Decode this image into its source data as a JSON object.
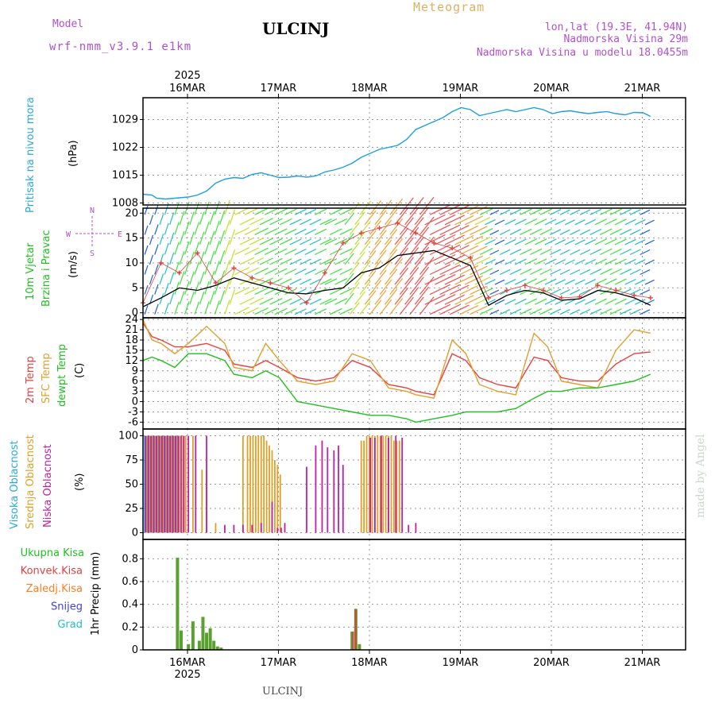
{
  "header": {
    "model_label": "Model",
    "model_name": "wrf-nmm_v3.9.1 e1km",
    "title": "ULCINJ",
    "meteogram_label": "Meteogram",
    "lonlat": "lon,lat (19.3E, 41.94N)",
    "elevation": "Nadmorska Visina 29m",
    "model_elevation": "Nadmorska Visina u modelu 18.0455m"
  },
  "footer": {
    "station": "ULCINJ",
    "credit": "made by Angel"
  },
  "colors": {
    "pressure": "#1e9fe0",
    "t2m": "#e84040",
    "sfc": "#e0a030",
    "dew": "#20c020",
    "high_cloud": "#28a8e0",
    "mid_cloud": "#e0a028",
    "low_cloud": "#c020a0",
    "precip": "#5aa030",
    "conv": "#e04040",
    "ice": "#ff7f20",
    "snow": "#4040e0",
    "grad": "#20c0c0",
    "wind_speed": "#000000",
    "gust": "#e04040"
  },
  "chart_data": [
    {
      "type": "line",
      "name": "pressure",
      "ylabel_1": "Pritisak na nivou mora",
      "ylabel_2": "(hPa)",
      "yticks": [
        1008,
        1015,
        1022,
        1029
      ],
      "ylim": [
        1007.5,
        1034.5
      ],
      "x_days": [
        "16MAR",
        "17MAR",
        "18MAR",
        "19MAR",
        "20MAR",
        "21MAR"
      ],
      "top_year": "2025",
      "bottom_year": "2025",
      "x": [
        0,
        0.1,
        0.15,
        0.25,
        0.35,
        0.5,
        0.6,
        0.7,
        0.8,
        0.9,
        1.0,
        1.1,
        1.2,
        1.3,
        1.4,
        1.5,
        1.6,
        1.7,
        1.8,
        1.9,
        2.0,
        2.1,
        2.2,
        2.3,
        2.4,
        2.5,
        2.6,
        2.7,
        2.8,
        2.9,
        3.0,
        3.1,
        3.2,
        3.3,
        3.4,
        3.5,
        3.6,
        3.7,
        3.8,
        3.9,
        4.0,
        4.1,
        4.2,
        4.3,
        4.4,
        4.5,
        4.6,
        4.7,
        4.8,
        4.9,
        5.0,
        5.1,
        5.2,
        5.3,
        5.4,
        5.5,
        5.58
      ],
      "y": [
        1010.2,
        1010.0,
        1009.2,
        1009.0,
        1009.2,
        1009.5,
        1010.0,
        1011.0,
        1013.0,
        1014.0,
        1014.4,
        1014.2,
        1015.2,
        1015.6,
        1015.0,
        1014.4,
        1014.5,
        1014.8,
        1014.5,
        1014.8,
        1015.8,
        1016.3,
        1017.0,
        1018.0,
        1019.5,
        1020.5,
        1021.5,
        1022.0,
        1022.5,
        1024.0,
        1026.5,
        1027.5,
        1028.5,
        1029.5,
        1031.0,
        1032.0,
        1031.5,
        1030.0,
        1030.5,
        1031.0,
        1031.5,
        1031.0,
        1031.5,
        1032.0,
        1031.5,
        1030.5,
        1031.0,
        1031.2,
        1030.8,
        1030.5,
        1030.8,
        1031.0,
        1030.5,
        1030.2,
        1030.8,
        1030.7,
        1029.8
      ]
    },
    {
      "type": "line",
      "name": "wind",
      "ylabel_1": "10m Vjetar",
      "ylabel_2": "Brzina i Pravac",
      "ylabel_3": "(m/s)",
      "compass": "N",
      "compass_w": "W",
      "compass_s": "S",
      "compass_e": "E",
      "yticks": [
        0,
        5,
        10,
        15,
        20
      ],
      "ylim": [
        -1,
        21
      ],
      "x": [
        0,
        0.2,
        0.4,
        0.6,
        0.8,
        1.0,
        1.2,
        1.4,
        1.6,
        1.8,
        2.0,
        2.2,
        2.4,
        2.6,
        2.8,
        3.0,
        3.2,
        3.4,
        3.6,
        3.8,
        4.0,
        4.2,
        4.4,
        4.6,
        4.8,
        5.0,
        5.2,
        5.4,
        5.58
      ],
      "speed": [
        1.2,
        3.0,
        5.0,
        4.5,
        5.5,
        7.0,
        6.0,
        5.0,
        4.0,
        3.8,
        4.5,
        5.0,
        8.0,
        9.0,
        11.5,
        12.0,
        12.5,
        11.0,
        9.5,
        1.5,
        3.5,
        4.5,
        4.0,
        2.5,
        2.8,
        4.5,
        4.0,
        3.0,
        1.5
      ],
      "gust": [
        2.0,
        10.0,
        8.0,
        12.0,
        6.0,
        9.0,
        7.0,
        6.0,
        5.0,
        2.0,
        8.0,
        14.0,
        16.0,
        17.0,
        18.0,
        16.0,
        14.0,
        13.0,
        11.0,
        3.0,
        4.5,
        5.5,
        4.5,
        3.0,
        3.2,
        5.5,
        4.5,
        3.5,
        3.0
      ]
    },
    {
      "type": "line",
      "name": "temperature",
      "ylabel_1": "2m Temp",
      "ylabel_2": "SFC Temp",
      "ylabel_3": "dewpt Temp",
      "ylabel_4": "(C)",
      "yticks": [
        -6,
        -3,
        0,
        3,
        6,
        9,
        12,
        15,
        18,
        21,
        24
      ],
      "ylim": [
        -8,
        24.5
      ],
      "x": [
        0,
        0.1,
        0.2,
        0.35,
        0.5,
        0.7,
        0.9,
        1.0,
        1.2,
        1.35,
        1.5,
        1.7,
        1.9,
        2.1,
        2.3,
        2.5,
        2.7,
        2.9,
        3.0,
        3.2,
        3.4,
        3.55,
        3.7,
        3.9,
        4.1,
        4.3,
        4.45,
        4.6,
        4.8,
        5.0,
        5.2,
        5.4,
        5.58
      ],
      "series": [
        {
          "key": "t2m",
          "y": [
            23,
            19,
            18,
            16,
            16,
            17,
            15,
            11,
            10,
            12,
            10,
            7,
            6,
            7,
            12,
            10,
            5,
            4,
            3,
            2,
            14,
            12,
            7,
            5,
            4,
            13,
            12,
            7,
            6,
            6,
            11,
            14,
            14.5
          ]
        },
        {
          "key": "sfc",
          "y": [
            24,
            18,
            17,
            14,
            17,
            22,
            17,
            10,
            9,
            17,
            12,
            6,
            5,
            6,
            14,
            12,
            4,
            3,
            2,
            1,
            18,
            14,
            5,
            3,
            2,
            20,
            16,
            6,
            5,
            4,
            15,
            21,
            20
          ]
        },
        {
          "key": "dew",
          "y": [
            12,
            13,
            12,
            10,
            14,
            14,
            12,
            8,
            7,
            9,
            7,
            0,
            -1,
            -2,
            -3,
            -4,
            -4,
            -5,
            -6,
            -5,
            -4,
            -3,
            -3,
            -3,
            -2,
            1,
            3,
            3,
            4,
            4,
            5,
            6,
            8
          ]
        }
      ]
    },
    {
      "type": "bar",
      "name": "clouds",
      "ylabel_1": "Visoka Oblacnost",
      "ylabel_2": "Srednja Oblacnost",
      "ylabel_3": "Niska Oblacnost",
      "ylabel_4": "(%)",
      "yticks": [
        0,
        25,
        50,
        75,
        100
      ],
      "ylim": [
        -7,
        107
      ],
      "high": [
        [
          0.02,
          100
        ],
        [
          0.05,
          100
        ],
        [
          0.08,
          100
        ],
        [
          0.11,
          100
        ],
        [
          0.14,
          100
        ],
        [
          0.17,
          100
        ],
        [
          0.2,
          100
        ],
        [
          0.23,
          100
        ],
        [
          0.26,
          100
        ],
        [
          0.29,
          100
        ],
        [
          0.32,
          100
        ],
        [
          0.35,
          100
        ],
        [
          0.38,
          100
        ]
      ],
      "mid": [
        [
          0.04,
          100
        ],
        [
          0.07,
          100
        ],
        [
          0.1,
          100
        ],
        [
          0.13,
          100
        ],
        [
          0.16,
          100
        ],
        [
          0.19,
          100
        ],
        [
          0.22,
          100
        ],
        [
          0.25,
          100
        ],
        [
          0.28,
          100
        ],
        [
          0.31,
          100
        ],
        [
          0.34,
          100
        ],
        [
          0.37,
          100
        ],
        [
          0.4,
          100
        ],
        [
          0.44,
          100
        ],
        [
          0.47,
          100
        ],
        [
          0.55,
          100
        ],
        [
          0.65,
          65
        ],
        [
          0.7,
          65
        ],
        [
          0.8,
          10
        ],
        [
          1.1,
          100
        ],
        [
          1.15,
          100
        ],
        [
          1.18,
          100
        ],
        [
          1.21,
          100
        ],
        [
          1.24,
          100
        ],
        [
          1.27,
          100
        ],
        [
          1.3,
          100
        ],
        [
          1.33,
          100
        ],
        [
          1.36,
          95
        ],
        [
          1.39,
          90
        ],
        [
          1.42,
          85
        ],
        [
          1.45,
          75
        ],
        [
          1.48,
          70
        ],
        [
          1.51,
          60
        ],
        [
          2.4,
          95
        ],
        [
          2.43,
          95
        ],
        [
          2.46,
          100
        ],
        [
          2.49,
          100
        ],
        [
          2.52,
          100
        ],
        [
          2.55,
          100
        ],
        [
          2.58,
          100
        ],
        [
          2.61,
          100
        ],
        [
          2.64,
          100
        ],
        [
          2.67,
          100
        ],
        [
          2.7,
          100
        ],
        [
          2.73,
          100
        ],
        [
          2.76,
          95
        ],
        [
          2.79,
          95
        ],
        [
          2.82,
          95
        ]
      ],
      "low": [
        [
          0.03,
          100
        ],
        [
          0.06,
          100
        ],
        [
          0.09,
          100
        ],
        [
          0.12,
          100
        ],
        [
          0.15,
          100
        ],
        [
          0.18,
          100
        ],
        [
          0.21,
          100
        ],
        [
          0.24,
          100
        ],
        [
          0.27,
          100
        ],
        [
          0.3,
          100
        ],
        [
          0.33,
          100
        ],
        [
          0.36,
          100
        ],
        [
          0.39,
          100
        ],
        [
          0.42,
          100
        ],
        [
          0.45,
          100
        ],
        [
          0.5,
          100
        ],
        [
          0.58,
          100
        ],
        [
          0.7,
          100
        ],
        [
          0.9,
          8
        ],
        [
          1.0,
          8
        ],
        [
          1.1,
          8
        ],
        [
          1.2,
          8
        ],
        [
          1.3,
          10
        ],
        [
          1.42,
          32
        ],
        [
          1.48,
          5
        ],
        [
          1.52,
          5
        ],
        [
          1.56,
          10
        ],
        [
          1.8,
          68
        ],
        [
          1.9,
          90
        ],
        [
          1.97,
          95
        ],
        [
          2.03,
          88
        ],
        [
          2.1,
          85
        ],
        [
          2.15,
          90
        ],
        [
          2.2,
          70
        ],
        [
          2.5,
          98
        ],
        [
          2.55,
          98
        ],
        [
          2.62,
          100
        ],
        [
          2.7,
          98
        ],
        [
          2.78,
          100
        ],
        [
          2.85,
          98
        ],
        [
          2.92,
          8
        ],
        [
          3.0,
          10
        ]
      ]
    },
    {
      "type": "bar",
      "name": "precip",
      "ylabel_1": "1hr Precip (mm)",
      "legend": [
        "Ukupna Kisa",
        "Konvek.Kisa",
        "Zaledj.Kisa",
        "Snijeg",
        "Grad"
      ],
      "yticks": [
        0,
        0.2,
        0.4,
        0.6,
        0.8
      ],
      "ylim": [
        0,
        0.97
      ],
      "total": [
        [
          0.38,
          0.81
        ],
        [
          0.42,
          0.17
        ],
        [
          0.5,
          0.05
        ],
        [
          0.55,
          0.25
        ],
        [
          0.62,
          0.08
        ],
        [
          0.66,
          0.29
        ],
        [
          0.7,
          0.15
        ],
        [
          0.74,
          0.19
        ],
        [
          0.78,
          0.08
        ],
        [
          0.82,
          0.03
        ],
        [
          0.86,
          0.02
        ],
        [
          2.3,
          0.16
        ],
        [
          2.34,
          0.36
        ],
        [
          2.38,
          0.05
        ]
      ],
      "conv": [
        [
          2.34,
          0.36
        ],
        [
          2.31,
          0.16
        ]
      ]
    }
  ]
}
